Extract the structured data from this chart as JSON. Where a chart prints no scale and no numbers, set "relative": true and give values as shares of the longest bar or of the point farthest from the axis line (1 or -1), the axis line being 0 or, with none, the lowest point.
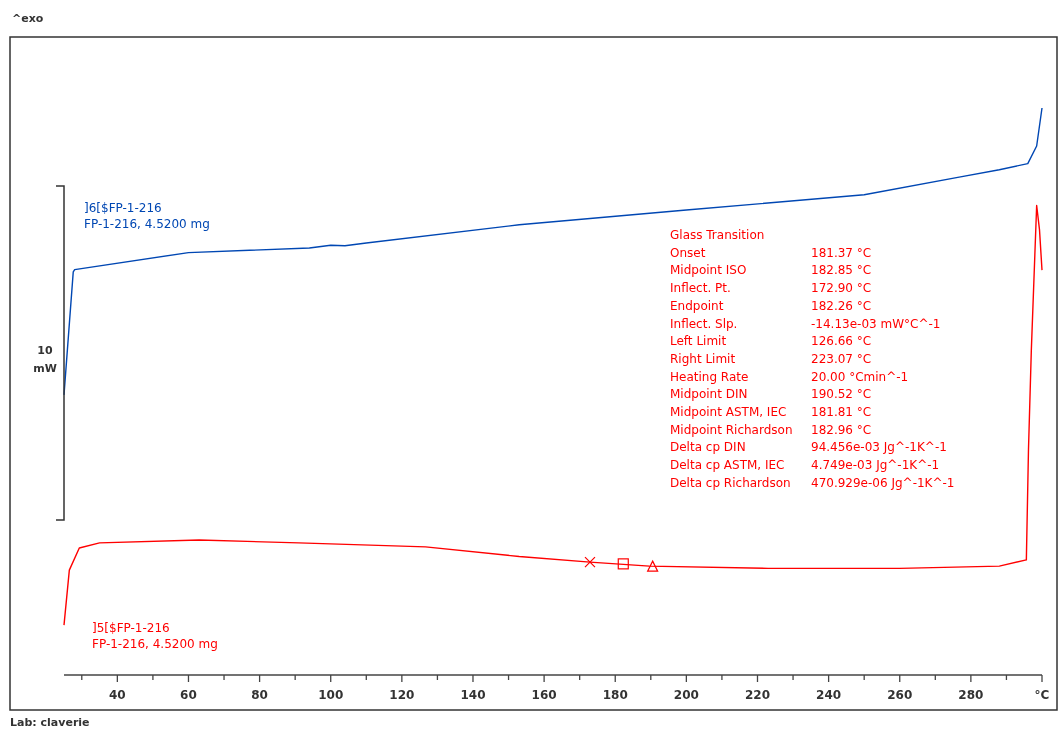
{
  "chart_data": {
    "type": "line",
    "relative": true,
    "xlim": [
      25,
      300
    ],
    "xticks": [
      {
        "value": 30,
        "label": null
      },
      40,
      {
        "value": 50,
        "label": null
      },
      60,
      {
        "value": 70,
        "label": null
      },
      80,
      {
        "value": 90,
        "label": null
      },
      100,
      {
        "value": 110,
        "label": null
      },
      120,
      {
        "value": 130,
        "label": null
      },
      140,
      {
        "value": 150,
        "label": null
      },
      160,
      {
        "value": 170,
        "label": null
      },
      180,
      {
        "value": 190,
        "label": null
      },
      200,
      {
        "value": 210,
        "label": null
      },
      220,
      {
        "value": 230,
        "label": null
      },
      240,
      {
        "value": 250,
        "label": null
      },
      260,
      {
        "value": 270,
        "label": null
      },
      280,
      {
        "value": 290,
        "label": null
      },
      {
        "value": 300,
        "label": "°C"
      }
    ],
    "grid": false,
    "marker": "none",
    "line_style": "solid",
    "series": [
      {
        "name": "]6[$FP-1-216\nFP-1-216, 4.5200 mg",
        "color": "#0047b3",
        "x": [
          25,
          27.6,
          28,
          60,
          94,
          100,
          104,
          110,
          153,
          200,
          250,
          276.7,
          288,
          296,
          298.5,
          300
        ],
        "values": [
          0.494,
          0.711,
          0.715,
          0.745,
          0.753,
          0.758,
          0.757,
          0.762,
          0.794,
          0.82,
          0.847,
          0.878,
          0.891,
          0.902,
          0.933,
          1
        ]
      },
      {
        "name": "]5[$FP-1-216\nFP-1-216, 4.5200 mg",
        "color": "#ff0000",
        "x": [
          25,
          26.5,
          29.3,
          35,
          63,
          91,
          126.66,
          153,
          172.9,
          189.6,
          223,
          260,
          288,
          295.6,
          296.2,
          297,
          298.5,
          299.3,
          300
        ],
        "values": [
          0.088,
          0.185,
          0.224,
          0.233,
          0.238,
          0.233,
          0.226,
          0.209,
          0.199,
          0.192,
          0.188,
          0.188,
          0.192,
          0.203,
          0.398,
          0.573,
          0.828,
          0.785,
          0.714
        ]
      },
      {
        "type": "scatter",
        "marker": "cross",
        "color": "#ff0000",
        "x": [
          172.9
        ],
        "values": [
          0.199
        ]
      },
      {
        "type": "scatter",
        "marker": "square",
        "color": "#ff0000",
        "x": [
          182.26
        ],
        "values": [
          0.196
        ]
      },
      {
        "type": "scatter",
        "marker": "triangle",
        "color": "#ff0000",
        "x": [
          190.52
        ],
        "values": [
          0.192
        ]
      }
    ],
    "annotations": [
      "^exo",
      "10 mW",
      "Lab: claverie",
      "Glass Transition",
      "Onset\t181.37 °C",
      "Midpoint ISO\t182.85 °C",
      "Inflect. Pt.\t172.90 °C",
      "Endpoint\t182.26 °C",
      "Inflect. Slp.\t-14.13e-03 mW°C^-1",
      "Left Limit\t126.66 °C",
      "Right Limit\t223.07 °C",
      "Heating Rate\t20.00 °Cmin^-1",
      "Midpoint DIN\t190.52 °C",
      "Midpoint ASTM, IEC\t181.81 °C",
      "Midpoint Richardson\t182.96 °C",
      "Delta cp DIN\t94.456e-03 Jg^-1K^-1",
      "Delta cp ASTM, IEC\t4.749e-03 Jg^-1K^-1",
      "Delta cp Richardson\t470.929e-06 Jg^-1K^-1"
    ]
  }
}
